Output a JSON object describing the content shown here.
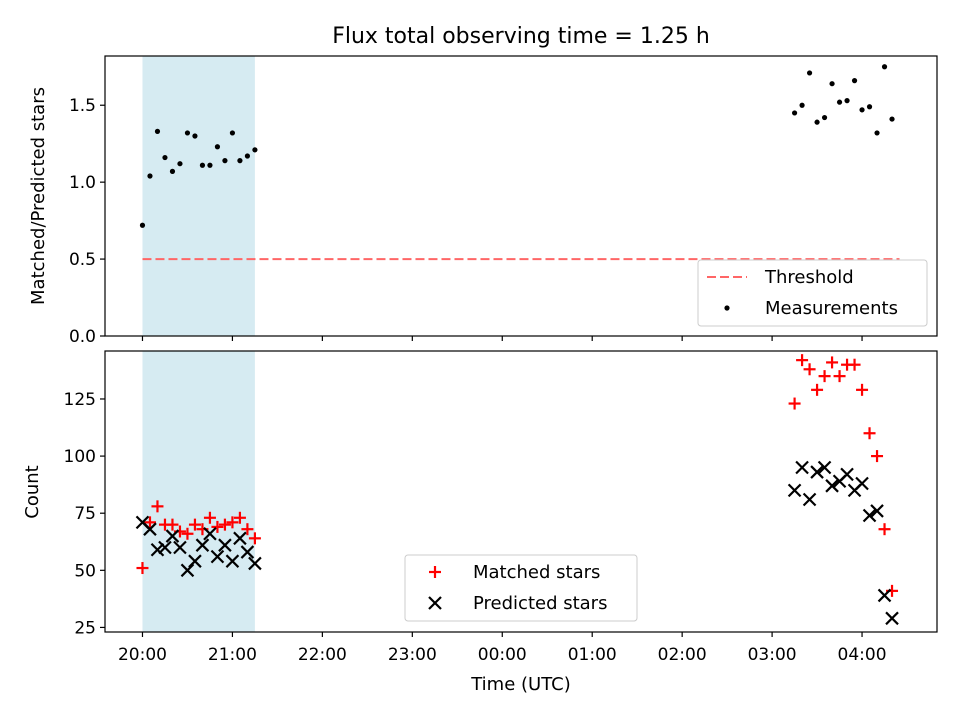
{
  "chart_data": [
    {
      "type": "scatter",
      "title": "Flux total observing time = 1.25 h",
      "xlabel": "",
      "ylabel": "Matched/Predicted stars",
      "ylim": [
        0,
        1.82
      ],
      "yticks": [
        0.0,
        0.5,
        1.0,
        1.5
      ],
      "ytick_labels": [
        "0.0",
        "0.5",
        "1.0",
        "1.5"
      ],
      "highlight_span": {
        "start": "20:00",
        "end": "21:15",
        "color": "#add8e6"
      },
      "threshold": {
        "name": "Threshold",
        "value": 0.5,
        "start": "20:00",
        "end": "04:25",
        "color": "#ff6666"
      },
      "legend": {
        "placement": "lower-right",
        "entries": [
          "Threshold",
          "Measurements"
        ]
      },
      "series": [
        {
          "name": "Measurements",
          "color": "#000000",
          "marker": "dot",
          "points": [
            [
              "20:00",
              0.72
            ],
            [
              "20:05",
              1.04
            ],
            [
              "20:10",
              1.33
            ],
            [
              "20:15",
              1.16
            ],
            [
              "20:20",
              1.07
            ],
            [
              "20:25",
              1.12
            ],
            [
              "20:30",
              1.32
            ],
            [
              "20:35",
              1.3
            ],
            [
              "20:40",
              1.11
            ],
            [
              "20:45",
              1.11
            ],
            [
              "20:50",
              1.23
            ],
            [
              "20:55",
              1.14
            ],
            [
              "21:00",
              1.32
            ],
            [
              "21:05",
              1.14
            ],
            [
              "21:10",
              1.17
            ],
            [
              "21:15",
              1.21
            ],
            [
              "03:15",
              1.45
            ],
            [
              "03:20",
              1.5
            ],
            [
              "03:25",
              1.71
            ],
            [
              "03:30",
              1.39
            ],
            [
              "03:35",
              1.42
            ],
            [
              "03:40",
              1.64
            ],
            [
              "03:45",
              1.52
            ],
            [
              "03:50",
              1.53
            ],
            [
              "03:55",
              1.66
            ],
            [
              "04:00",
              1.47
            ],
            [
              "04:05",
              1.49
            ],
            [
              "04:10",
              1.32
            ],
            [
              "04:15",
              1.75
            ],
            [
              "04:20",
              1.41
            ]
          ]
        }
      ]
    },
    {
      "type": "scatter",
      "title": "",
      "xlabel": "Time (UTC)",
      "ylabel": "Count",
      "ylim": [
        23,
        146
      ],
      "yticks": [
        25,
        50,
        75,
        100,
        125
      ],
      "ytick_labels": [
        "25",
        "50",
        "75",
        "100",
        "125"
      ],
      "x_start": "19:35",
      "x_end": "04:50",
      "xticks": [
        "20:00",
        "21:00",
        "22:00",
        "23:00",
        "00:00",
        "01:00",
        "02:00",
        "03:00",
        "04:00"
      ],
      "xtick_labels": [
        "20:00",
        "21:00",
        "22:00",
        "23:00",
        "00:00",
        "01:00",
        "02:00",
        "03:00",
        "04:00"
      ],
      "highlight_span": {
        "start": "20:00",
        "end": "21:15",
        "color": "#add8e6"
      },
      "legend": {
        "placement": "lower-center",
        "entries": [
          "Matched stars",
          "Predicted stars"
        ]
      },
      "series": [
        {
          "name": "Matched stars",
          "color": "#ff0000",
          "marker": "plus",
          "points": [
            [
              "20:00",
              51
            ],
            [
              "20:05",
              71
            ],
            [
              "20:10",
              78
            ],
            [
              "20:15",
              70
            ],
            [
              "20:20",
              70
            ],
            [
              "20:25",
              67
            ],
            [
              "20:30",
              66
            ],
            [
              "20:35",
              70
            ],
            [
              "20:40",
              68
            ],
            [
              "20:45",
              73
            ],
            [
              "20:50",
              69
            ],
            [
              "20:55",
              70
            ],
            [
              "21:00",
              71
            ],
            [
              "21:05",
              73
            ],
            [
              "21:10",
              68
            ],
            [
              "21:15",
              64
            ],
            [
              "03:15",
              123
            ],
            [
              "03:20",
              142
            ],
            [
              "03:25",
              138
            ],
            [
              "03:30",
              129
            ],
            [
              "03:35",
              135
            ],
            [
              "03:40",
              141
            ],
            [
              "03:45",
              135
            ],
            [
              "03:50",
              140
            ],
            [
              "03:55",
              140
            ],
            [
              "04:00",
              129
            ],
            [
              "04:05",
              110
            ],
            [
              "04:10",
              100
            ],
            [
              "04:15",
              68
            ],
            [
              "04:20",
              41
            ]
          ]
        },
        {
          "name": "Predicted stars",
          "color": "#000000",
          "marker": "x",
          "points": [
            [
              "20:00",
              71
            ],
            [
              "20:05",
              68
            ],
            [
              "20:10",
              59
            ],
            [
              "20:15",
              60
            ],
            [
              "20:20",
              65
            ],
            [
              "20:25",
              60
            ],
            [
              "20:30",
              50
            ],
            [
              "20:35",
              54
            ],
            [
              "20:40",
              61
            ],
            [
              "20:45",
              66
            ],
            [
              "20:50",
              56
            ],
            [
              "20:55",
              61
            ],
            [
              "21:00",
              54
            ],
            [
              "21:05",
              64
            ],
            [
              "21:10",
              58
            ],
            [
              "21:15",
              53
            ],
            [
              "03:15",
              85
            ],
            [
              "03:20",
              95
            ],
            [
              "03:25",
              81
            ],
            [
              "03:30",
              93
            ],
            [
              "03:35",
              95
            ],
            [
              "03:40",
              87
            ],
            [
              "03:45",
              89
            ],
            [
              "03:50",
              92
            ],
            [
              "03:55",
              85
            ],
            [
              "04:00",
              88
            ],
            [
              "04:05",
              74
            ],
            [
              "04:10",
              76
            ],
            [
              "04:15",
              39
            ],
            [
              "04:20",
              29
            ]
          ]
        }
      ]
    }
  ]
}
